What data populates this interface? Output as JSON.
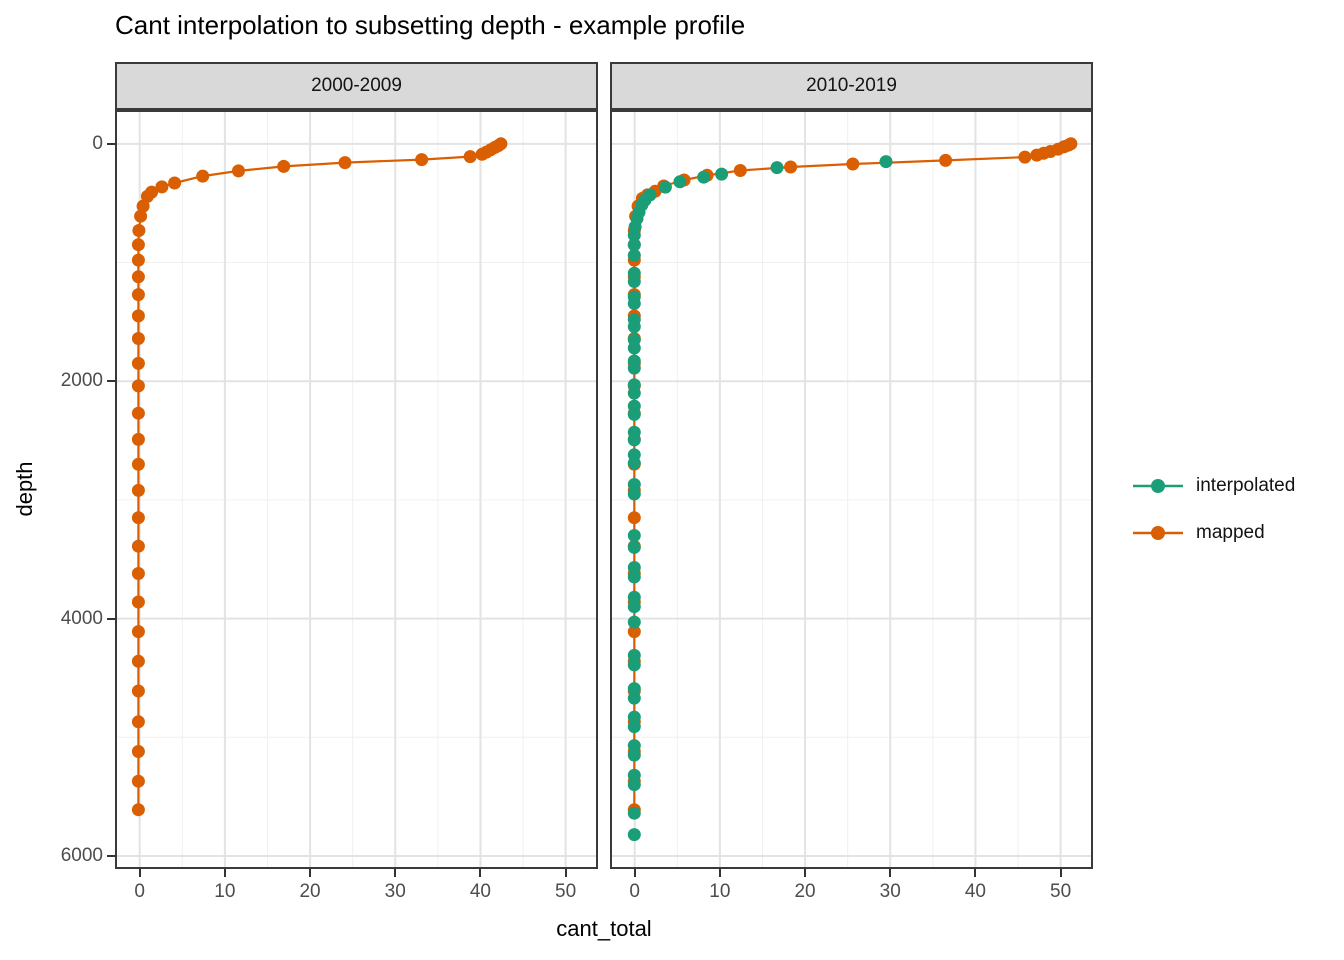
{
  "title": "Cant interpolation to subsetting depth - example profile",
  "chart_data": {
    "type": "scatter",
    "title": "Cant interpolation to subsetting depth - example profile",
    "xlabel": "cant_total",
    "ylabel": "depth",
    "x_ticks": [
      0,
      10,
      20,
      30,
      40,
      50
    ],
    "x_minor": [
      5,
      15,
      25,
      35,
      45
    ],
    "y_ticks": [
      0,
      2000,
      4000,
      6000
    ],
    "y_minor": [
      1000,
      3000,
      5000
    ],
    "xlim": [
      -2.9,
      53.8
    ],
    "ylim": [
      -285,
      6110
    ],
    "y_reversed": true,
    "grid": "major+minor",
    "legend_position": "right",
    "legend": [
      {
        "label": "interpolated",
        "color": "#1B9E77"
      },
      {
        "label": "mapped",
        "color": "#D95F02"
      }
    ],
    "facets": [
      {
        "label": "2000-2009",
        "series": [
          {
            "name": "mapped",
            "color": "#D95F02",
            "line": true,
            "points": [
              [
                42.4,
                0
              ],
              [
                42.1,
                15
              ],
              [
                41.7,
                30
              ],
              [
                41.2,
                50
              ],
              [
                40.7,
                70
              ],
              [
                40.2,
                88
              ],
              [
                38.8,
                108
              ],
              [
                33.1,
                133
              ],
              [
                24.1,
                158
              ],
              [
                16.9,
                190
              ],
              [
                11.6,
                228
              ],
              [
                7.4,
                272
              ],
              [
                4.1,
                330
              ],
              [
                2.6,
                363
              ],
              [
                1.4,
                407
              ],
              [
                0.9,
                443
              ],
              [
                0.4,
                525
              ],
              [
                0.1,
                610
              ],
              [
                -0.1,
                730
              ],
              [
                -0.15,
                850
              ],
              [
                -0.15,
                980
              ],
              [
                -0.15,
                1120
              ],
              [
                -0.15,
                1270
              ],
              [
                -0.15,
                1450
              ],
              [
                -0.15,
                1640
              ],
              [
                -0.15,
                1850
              ],
              [
                -0.15,
                2040
              ],
              [
                -0.15,
                2270
              ],
              [
                -0.15,
                2490
              ],
              [
                -0.15,
                2700
              ],
              [
                -0.15,
                2920
              ],
              [
                -0.15,
                3150
              ],
              [
                -0.15,
                3390
              ],
              [
                -0.15,
                3620
              ],
              [
                -0.15,
                3860
              ],
              [
                -0.15,
                4110
              ],
              [
                -0.15,
                4360
              ],
              [
                -0.15,
                4610
              ],
              [
                -0.15,
                4870
              ],
              [
                -0.15,
                5120
              ],
              [
                -0.15,
                5370
              ],
              [
                -0.15,
                5610
              ]
            ]
          }
        ]
      },
      {
        "label": "2010-2019",
        "series": [
          {
            "name": "mapped",
            "color": "#D95F02",
            "line": true,
            "points": [
              [
                51.2,
                0
              ],
              [
                50.9,
                12
              ],
              [
                50.4,
                25
              ],
              [
                49.7,
                45
              ],
              [
                48.8,
                65
              ],
              [
                48.0,
                80
              ],
              [
                47.2,
                95
              ],
              [
                45.8,
                112
              ],
              [
                36.5,
                140
              ],
              [
                25.6,
                170
              ],
              [
                18.3,
                195
              ],
              [
                12.4,
                225
              ],
              [
                8.5,
                265
              ],
              [
                5.8,
                305
              ],
              [
                3.4,
                355
              ],
              [
                2.4,
                400
              ],
              [
                1.5,
                430
              ],
              [
                0.9,
                460
              ],
              [
                0.4,
                525
              ],
              [
                0.1,
                610
              ],
              [
                -0.05,
                730
              ],
              [
                -0.05,
                850
              ],
              [
                -0.05,
                980
              ],
              [
                -0.05,
                1120
              ],
              [
                -0.05,
                1270
              ],
              [
                -0.05,
                1450
              ],
              [
                -0.05,
                1640
              ],
              [
                -0.05,
                1850
              ],
              [
                -0.05,
                2040
              ],
              [
                -0.05,
                2270
              ],
              [
                -0.05,
                2490
              ],
              [
                -0.05,
                2700
              ],
              [
                -0.05,
                2920
              ],
              [
                -0.05,
                3150
              ],
              [
                -0.05,
                3390
              ],
              [
                -0.05,
                3620
              ],
              [
                -0.05,
                3860
              ],
              [
                -0.05,
                4110
              ],
              [
                -0.05,
                4360
              ],
              [
                -0.05,
                4610
              ],
              [
                -0.05,
                4870
              ],
              [
                -0.05,
                5120
              ],
              [
                -0.05,
                5370
              ],
              [
                -0.05,
                5610
              ]
            ]
          },
          {
            "name": "interpolated",
            "color": "#1B9E77",
            "line": false,
            "points": [
              [
                29.5,
                150
              ],
              [
                16.7,
                200
              ],
              [
                10.2,
                255
              ],
              [
                8.1,
                280
              ],
              [
                5.3,
                320
              ],
              [
                3.6,
                365
              ],
              [
                1.8,
                430
              ],
              [
                1.2,
                475
              ],
              [
                0.85,
                515
              ],
              [
                0.5,
                575
              ],
              [
                0.27,
                630
              ],
              [
                0.05,
                700
              ],
              [
                -0.05,
                770
              ],
              [
                -0.05,
                852
              ],
              [
                -0.05,
                940
              ],
              [
                -0.05,
                1090
              ],
              [
                -0.05,
                1160
              ],
              [
                -0.05,
                1290
              ],
              [
                -0.05,
                1345
              ],
              [
                -0.05,
                1480
              ],
              [
                -0.05,
                1540
              ],
              [
                -0.05,
                1650
              ],
              [
                -0.05,
                1720
              ],
              [
                -0.05,
                1830
              ],
              [
                -0.05,
                1890
              ],
              [
                -0.05,
                2030
              ],
              [
                -0.05,
                2100
              ],
              [
                -0.05,
                2210
              ],
              [
                -0.05,
                2280
              ],
              [
                -0.05,
                2430
              ],
              [
                -0.05,
                2495
              ],
              [
                -0.05,
                2620
              ],
              [
                -0.05,
                2690
              ],
              [
                -0.05,
                2870
              ],
              [
                -0.05,
                2950
              ],
              [
                -0.05,
                3300
              ],
              [
                -0.05,
                3400
              ],
              [
                -0.05,
                3570
              ],
              [
                -0.05,
                3650
              ],
              [
                -0.05,
                3820
              ],
              [
                -0.05,
                3900
              ],
              [
                -0.05,
                4030
              ],
              [
                -0.05,
                4310
              ],
              [
                -0.05,
                4390
              ],
              [
                -0.05,
                4590
              ],
              [
                -0.05,
                4670
              ],
              [
                -0.05,
                4830
              ],
              [
                -0.05,
                4910
              ],
              [
                -0.05,
                5070
              ],
              [
                -0.05,
                5150
              ],
              [
                -0.05,
                5320
              ],
              [
                -0.05,
                5400
              ],
              [
                -0.05,
                5640
              ],
              [
                -0.05,
                5820
              ]
            ]
          }
        ]
      }
    ]
  }
}
